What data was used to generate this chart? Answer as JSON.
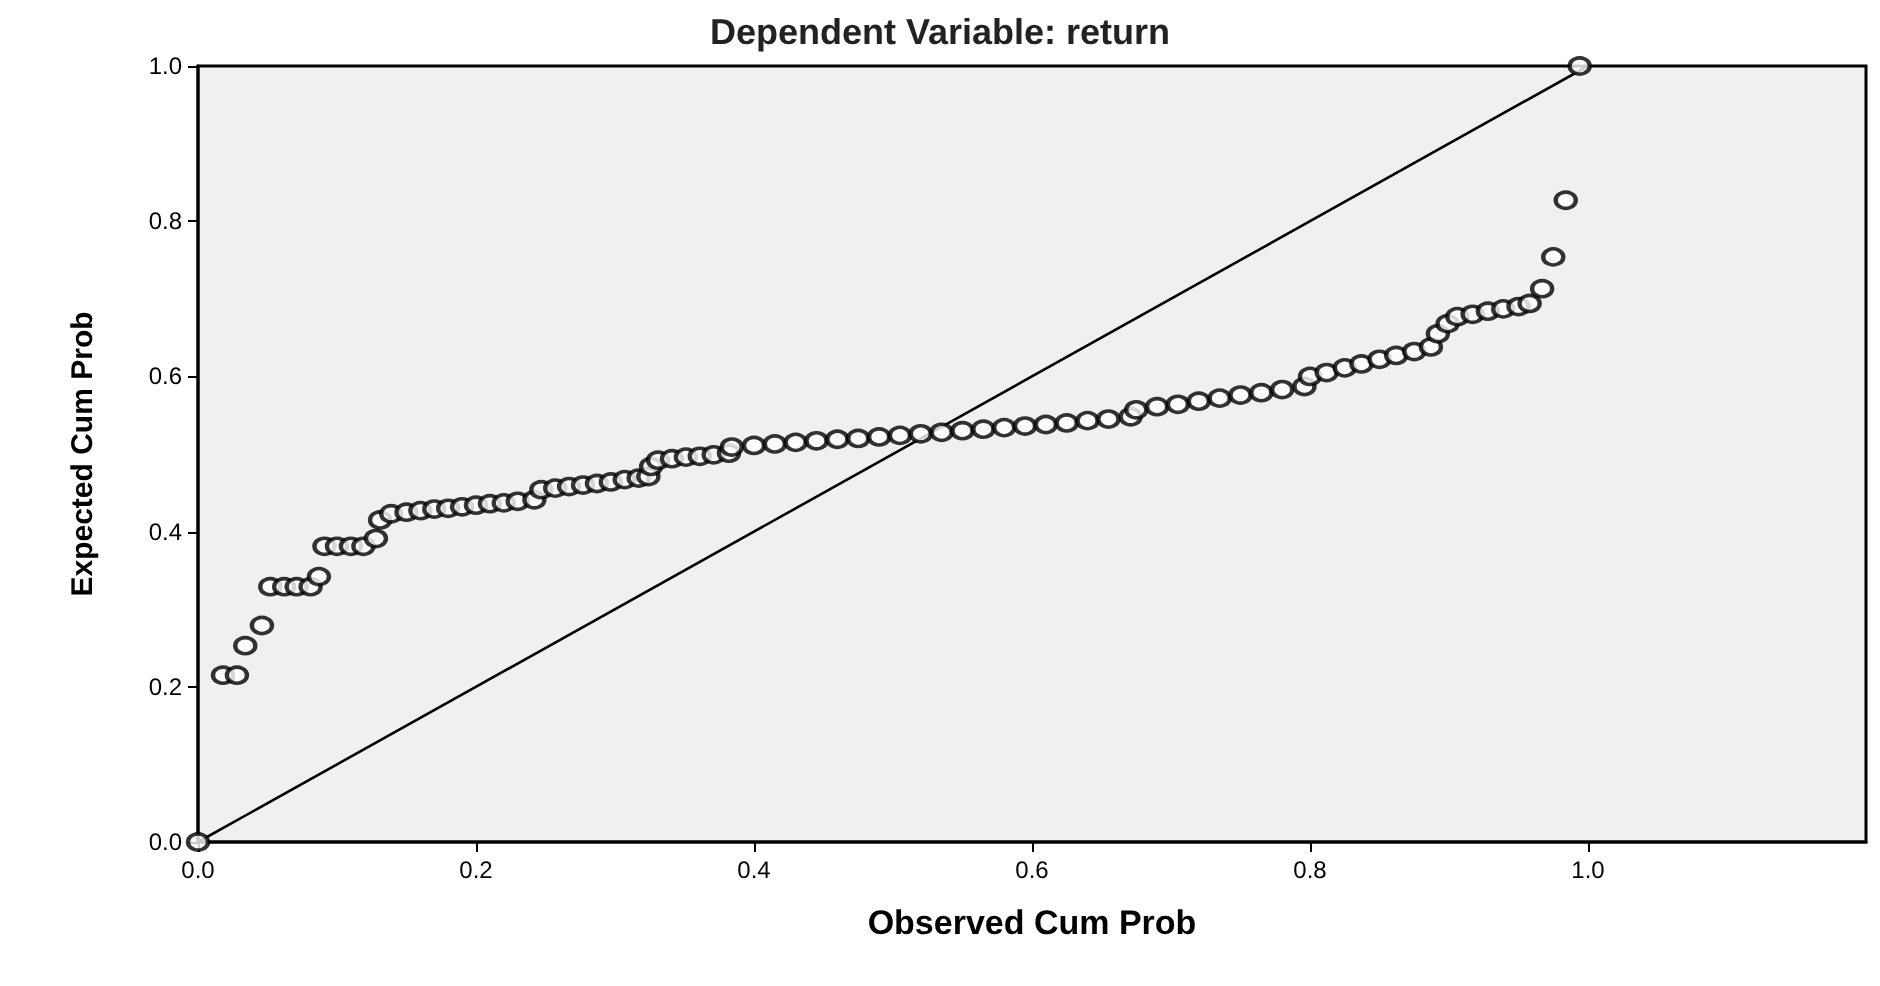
{
  "chart_data": {
    "type": "scatter",
    "title": "Dependent Variable: return",
    "xlabel": "Observed Cum Prob",
    "ylabel": "Expected Cum Prob",
    "xlim": [
      0,
      1.2
    ],
    "ylim": [
      0,
      1
    ],
    "xticks": [
      {
        "value": 0,
        "label": "0.0"
      },
      0.2,
      0.4,
      0.6,
      0.8,
      {
        "value": 1,
        "label": "1.0"
      }
    ],
    "yticks": [
      {
        "value": 0,
        "label": "0.0"
      },
      0.2,
      0.4,
      0.6,
      0.8,
      {
        "value": 1,
        "label": "1.0"
      }
    ],
    "grid": false,
    "series": [
      {
        "color": "#000000",
        "marker": "circle",
        "x": [
          0,
          0.018,
          0.028,
          0.034,
          0.046,
          0.052,
          0.062,
          0.071,
          0.081,
          0.087,
          0.091,
          0.1,
          0.11,
          0.119,
          0.128,
          0.131,
          0.139,
          0.15,
          0.16,
          0.17,
          0.18,
          0.19,
          0.2,
          0.21,
          0.22,
          0.23,
          0.242,
          0.247,
          0.257,
          0.267,
          0.277,
          0.287,
          0.297,
          0.307,
          0.317,
          0.324,
          0.326,
          0.331,
          0.341,
          0.351,
          0.361,
          0.371,
          0.382,
          0.384,
          0.4,
          0.415,
          0.43,
          0.445,
          0.46,
          0.475,
          0.49,
          0.505,
          0.52,
          0.535,
          0.55,
          0.565,
          0.58,
          0.595,
          0.61,
          0.625,
          0.64,
          0.655,
          0.671,
          0.675,
          0.69,
          0.705,
          0.72,
          0.735,
          0.75,
          0.765,
          0.78,
          0.796,
          0.8,
          0.812,
          0.825,
          0.837,
          0.85,
          0.862,
          0.875,
          0.887,
          0.892,
          0.899,
          0.906,
          0.917,
          0.928,
          0.939,
          0.95,
          0.958,
          0.967,
          0.975,
          0.984,
          0.994
        ],
        "values": [
          0,
          0.215,
          0.215,
          0.253,
          0.279,
          0.329,
          0.329,
          0.329,
          0.329,
          0.342,
          0.381,
          0.381,
          0.381,
          0.381,
          0.391,
          0.415,
          0.423,
          0.425,
          0.427,
          0.429,
          0.43,
          0.432,
          0.434,
          0.436,
          0.437,
          0.439,
          0.441,
          0.454,
          0.456,
          0.458,
          0.46,
          0.462,
          0.464,
          0.467,
          0.469,
          0.471,
          0.484,
          0.492,
          0.494,
          0.496,
          0.497,
          0.499,
          0.501,
          0.509,
          0.511,
          0.513,
          0.515,
          0.517,
          0.519,
          0.52,
          0.522,
          0.524,
          0.526,
          0.528,
          0.53,
          0.532,
          0.534,
          0.536,
          0.538,
          0.54,
          0.543,
          0.545,
          0.548,
          0.557,
          0.561,
          0.564,
          0.568,
          0.572,
          0.576,
          0.579,
          0.583,
          0.587,
          0.6,
          0.605,
          0.611,
          0.616,
          0.622,
          0.627,
          0.632,
          0.638,
          0.655,
          0.668,
          0.677,
          0.68,
          0.684,
          0.687,
          0.69,
          0.694,
          0.713,
          0.754,
          0.827,
          1
        ]
      },
      {
        "type": "line",
        "color": "#000000",
        "marker": "none",
        "line_style": "solid",
        "x": [
          0,
          1
        ],
        "values": [
          0,
          1
        ]
      }
    ]
  }
}
